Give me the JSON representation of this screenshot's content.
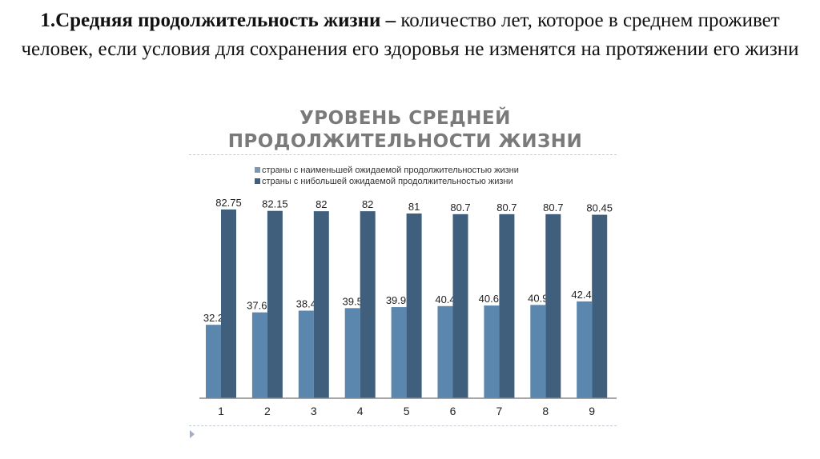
{
  "heading": {
    "bold": "1.Средняя продолжительность жизни –",
    "text": " количество лет, которое в среднем проживет человек, если условия для сохранения его здоровья не изменятся на протяжении его жизни"
  },
  "chart_data": {
    "type": "bar",
    "title_line1": "УРОВЕНЬ СРЕДНЕЙ",
    "title_line2": "ПРОДОЛЖИТЕЛЬНОСТИ ЖИЗНИ",
    "categories": [
      "1",
      "2",
      "3",
      "4",
      "5",
      "6",
      "7",
      "8",
      "9"
    ],
    "series": [
      {
        "name": "страны с наименьшей ожидаемой продолжительностью жизни",
        "color": "#5b86ad",
        "values": [
          32.2,
          37.65,
          38.4,
          39.5,
          39.95,
          40.4,
          40.65,
          40.9,
          42.45
        ]
      },
      {
        "name": "страны с нибольшей ожидаемой продолжительностью жизни",
        "color": "#3f5f7d",
        "values": [
          82.75,
          82.15,
          82,
          82,
          81,
          80.7,
          80.7,
          80.7,
          80.45
        ]
      }
    ],
    "labels": [
      [
        "32.2",
        "37.65",
        "38.4",
        "39.5",
        "39.95",
        "40.4",
        "40.65",
        "40.9",
        "42.45"
      ],
      [
        "82.75",
        "82.15",
        "82",
        "82",
        "81",
        "80.7",
        "80.7",
        "80.7",
        "80.45"
      ]
    ],
    "ylim": [
      0,
      90
    ],
    "grid": false,
    "legend": "top"
  }
}
